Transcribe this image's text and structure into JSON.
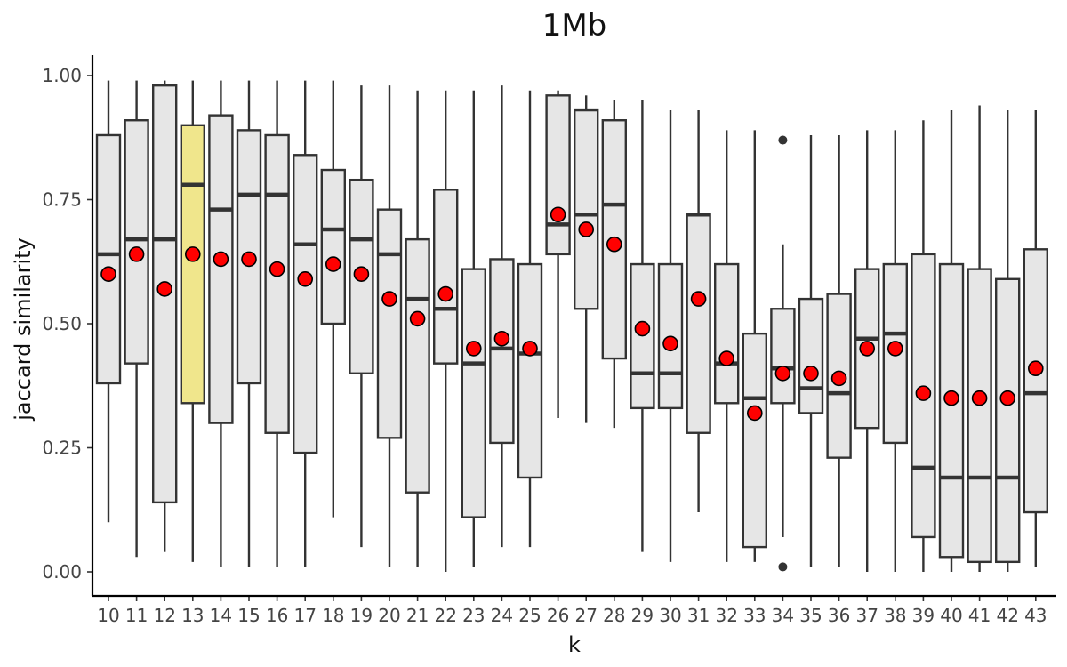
{
  "chart_data": {
    "type": "boxplot",
    "title": "1Mb",
    "xlabel": "k",
    "ylabel": "jaccard similarity",
    "ylim": [
      -0.05,
      1.05
    ],
    "yticks": [
      "0.00",
      "0.25",
      "0.50",
      "0.75",
      "1.00"
    ],
    "ytick_values": [
      0,
      0.25,
      0.5,
      0.75,
      1.0
    ],
    "grid": false,
    "legend": "none",
    "colors": {
      "box_fill": "#e6e6e6",
      "highlight_fill": "#f0e68c",
      "mean_point": "#ff0000",
      "stroke": "#333333"
    },
    "highlight_category": "13",
    "categories": [
      "10",
      "11",
      "12",
      "13",
      "14",
      "15",
      "16",
      "17",
      "18",
      "19",
      "20",
      "21",
      "22",
      "23",
      "24",
      "25",
      "26",
      "27",
      "28",
      "29",
      "30",
      "31",
      "32",
      "33",
      "34",
      "35",
      "36",
      "37",
      "38",
      "39",
      "40",
      "41",
      "42",
      "43"
    ],
    "boxes": [
      {
        "k": "10",
        "min": 0.1,
        "q1": 0.38,
        "median": 0.64,
        "q3": 0.88,
        "max": 0.99,
        "mean": 0.6
      },
      {
        "k": "11",
        "min": 0.03,
        "q1": 0.42,
        "median": 0.67,
        "q3": 0.91,
        "max": 0.99,
        "mean": 0.64
      },
      {
        "k": "12",
        "min": 0.04,
        "q1": 0.14,
        "median": 0.67,
        "q3": 0.98,
        "max": 0.99,
        "mean": 0.57
      },
      {
        "k": "13",
        "min": 0.02,
        "q1": 0.34,
        "median": 0.78,
        "q3": 0.9,
        "max": 0.99,
        "mean": 0.64
      },
      {
        "k": "14",
        "min": 0.01,
        "q1": 0.3,
        "median": 0.73,
        "q3": 0.92,
        "max": 0.99,
        "mean": 0.63
      },
      {
        "k": "15",
        "min": 0.01,
        "q1": 0.38,
        "median": 0.76,
        "q3": 0.89,
        "max": 0.99,
        "mean": 0.63
      },
      {
        "k": "16",
        "min": 0.01,
        "q1": 0.28,
        "median": 0.76,
        "q3": 0.88,
        "max": 0.99,
        "mean": 0.61
      },
      {
        "k": "17",
        "min": 0.01,
        "q1": 0.24,
        "median": 0.66,
        "q3": 0.84,
        "max": 0.99,
        "mean": 0.59
      },
      {
        "k": "18",
        "min": 0.11,
        "q1": 0.5,
        "median": 0.69,
        "q3": 0.81,
        "max": 0.99,
        "mean": 0.62
      },
      {
        "k": "19",
        "min": 0.05,
        "q1": 0.4,
        "median": 0.67,
        "q3": 0.79,
        "max": 0.98,
        "mean": 0.6
      },
      {
        "k": "20",
        "min": 0.01,
        "q1": 0.27,
        "median": 0.64,
        "q3": 0.73,
        "max": 0.98,
        "mean": 0.55
      },
      {
        "k": "21",
        "min": 0.01,
        "q1": 0.16,
        "median": 0.55,
        "q3": 0.67,
        "max": 0.97,
        "mean": 0.51
      },
      {
        "k": "22",
        "min": 0.0,
        "q1": 0.42,
        "median": 0.53,
        "q3": 0.77,
        "max": 0.97,
        "mean": 0.56
      },
      {
        "k": "23",
        "min": 0.01,
        "q1": 0.11,
        "median": 0.42,
        "q3": 0.61,
        "max": 0.97,
        "mean": 0.45
      },
      {
        "k": "24",
        "min": 0.05,
        "q1": 0.26,
        "median": 0.45,
        "q3": 0.63,
        "max": 0.98,
        "mean": 0.47
      },
      {
        "k": "25",
        "min": 0.05,
        "q1": 0.19,
        "median": 0.44,
        "q3": 0.62,
        "max": 0.97,
        "mean": 0.45
      },
      {
        "k": "26",
        "min": 0.31,
        "q1": 0.64,
        "median": 0.7,
        "q3": 0.96,
        "max": 0.97,
        "mean": 0.72
      },
      {
        "k": "27",
        "min": 0.3,
        "q1": 0.53,
        "median": 0.72,
        "q3": 0.93,
        "max": 0.96,
        "mean": 0.69
      },
      {
        "k": "28",
        "min": 0.29,
        "q1": 0.43,
        "median": 0.74,
        "q3": 0.91,
        "max": 0.95,
        "mean": 0.66
      },
      {
        "k": "29",
        "min": 0.04,
        "q1": 0.33,
        "median": 0.4,
        "q3": 0.62,
        "max": 0.95,
        "mean": 0.49
      },
      {
        "k": "30",
        "min": 0.02,
        "q1": 0.33,
        "median": 0.4,
        "q3": 0.62,
        "max": 0.93,
        "mean": 0.46
      },
      {
        "k": "31",
        "min": 0.12,
        "q1": 0.28,
        "median": 0.72,
        "q3": 0.72,
        "max": 0.93,
        "mean": 0.55
      },
      {
        "k": "32",
        "min": 0.02,
        "q1": 0.34,
        "median": 0.42,
        "q3": 0.62,
        "max": 0.89,
        "mean": 0.43
      },
      {
        "k": "33",
        "min": 0.02,
        "q1": 0.05,
        "median": 0.35,
        "q3": 0.48,
        "max": 0.89,
        "mean": 0.32
      },
      {
        "k": "34",
        "min": 0.07,
        "q1": 0.34,
        "median": 0.41,
        "q3": 0.53,
        "max": 0.66,
        "mean": 0.4,
        "outliers": [
          0.87,
          0.01
        ]
      },
      {
        "k": "35",
        "min": 0.01,
        "q1": 0.32,
        "median": 0.37,
        "q3": 0.55,
        "max": 0.88,
        "mean": 0.4
      },
      {
        "k": "36",
        "min": 0.01,
        "q1": 0.23,
        "median": 0.36,
        "q3": 0.56,
        "max": 0.88,
        "mean": 0.39
      },
      {
        "k": "37",
        "min": 0.0,
        "q1": 0.29,
        "median": 0.47,
        "q3": 0.61,
        "max": 0.89,
        "mean": 0.45
      },
      {
        "k": "38",
        "min": 0.0,
        "q1": 0.26,
        "median": 0.48,
        "q3": 0.62,
        "max": 0.89,
        "mean": 0.45
      },
      {
        "k": "39",
        "min": 0.0,
        "q1": 0.07,
        "median": 0.21,
        "q3": 0.64,
        "max": 0.91,
        "mean": 0.36
      },
      {
        "k": "40",
        "min": 0.0,
        "q1": 0.03,
        "median": 0.19,
        "q3": 0.62,
        "max": 0.93,
        "mean": 0.35
      },
      {
        "k": "41",
        "min": 0.0,
        "q1": 0.02,
        "median": 0.19,
        "q3": 0.61,
        "max": 0.94,
        "mean": 0.35
      },
      {
        "k": "42",
        "min": 0.0,
        "q1": 0.02,
        "median": 0.19,
        "q3": 0.59,
        "max": 0.93,
        "mean": 0.35
      },
      {
        "k": "43",
        "min": 0.01,
        "q1": 0.12,
        "median": 0.36,
        "q3": 0.65,
        "max": 0.93,
        "mean": 0.41
      }
    ]
  }
}
